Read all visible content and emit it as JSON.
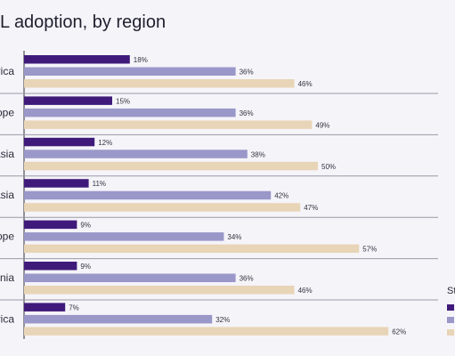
{
  "title": "L adoption, by region",
  "chart_data": {
    "type": "bar",
    "orientation": "horizontal",
    "title": "L adoption, by region",
    "categories": [
      "rica",
      "ope",
      "Asia",
      "Asia",
      "ope",
      "nia",
      "rica"
    ],
    "series": [
      {
        "values": [
          18,
          15,
          12,
          11,
          9,
          9,
          7
        ]
      },
      {
        "values": [
          36,
          36,
          38,
          42,
          34,
          36,
          32
        ]
      },
      {
        "values": [
          46,
          49,
          50,
          47,
          57,
          46,
          62
        ]
      }
    ],
    "value_suffix": "%",
    "legend": {
      "title": "St",
      "placement": "right"
    },
    "colors": [
      "#3f1a7a",
      "#9a97c9",
      "#e8d5b7"
    ],
    "row_separator_color": "#9a9aa8",
    "axis_color": "#2b2b3a"
  }
}
